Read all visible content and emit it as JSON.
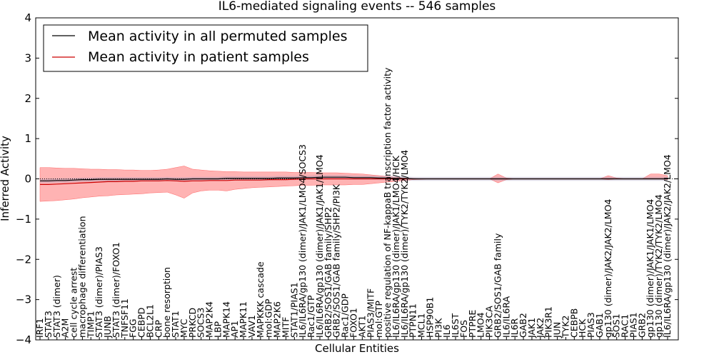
{
  "chart_data": {
    "type": "line",
    "title": "IL6-mediated signaling events -- 546 samples",
    "xlabel": "Cellular Entities",
    "ylabel": "Inferred Activity",
    "ylim": [
      -4,
      4
    ],
    "yticks": [
      -4,
      -3,
      -2,
      -1,
      0,
      1,
      2,
      3,
      4
    ],
    "legend_position": "top-left",
    "colors": {
      "permuted": "#000000",
      "patient": "#cc0000",
      "patient_band": "#ff9999",
      "permuted_band": "#9999bb"
    },
    "categories": [
      "IRF1",
      "STAT3",
      "STAT3 (dimer)",
      "A2M",
      "cell cycle arrest",
      "macrophage differentiation",
      "TIMP1",
      "STAT3 (dimer)/PIAS3",
      "JUNB",
      "STAT3 (dimer)/FOXO1",
      "TNFSF11",
      "FGG",
      "CEBPD",
      "BCL2L1",
      "CRP",
      "bone resorption",
      "STAT1",
      "MYC",
      "PRKCD",
      "SOCS3",
      "MAP2K4",
      "LBP",
      "MAPK14",
      "AP1",
      "MAPK11",
      "VAV1",
      "MAPKKK cascade",
      "mol:GDP",
      "MAP2K6",
      "MITF",
      "STAT1/PIAS1",
      "IL6/IL6RA/gp130 (dimer)/JAK1/LMO4/SOCS3",
      "Rac1/GTP",
      "IL6/IL6RA/gp130 (dimer)/JAK1/JAK1/LMO4",
      "GRB2/SOS1/GAB family/SHP2",
      "GRB2/SOS1/GAB family/SHP2/PI3K",
      "Rac1/GDP",
      "FOXO1",
      "AKT1",
      "PIAS3/MITF",
      "mol:GTP",
      "positive regulation of NF-kappaB transcription factor activity",
      "IL6/IL6RA/gp130 (dimer)/JAK1/LMO4/HCK",
      "IL6/IL6RA/gp130 (dimer)/TYK2/TYK2/LMO4",
      "PTPN11",
      "MCL1",
      "HSP90B1",
      "PI3K",
      "IL6",
      "IL6ST",
      "FOS",
      "PTPRE",
      "LMO4",
      "PIK3CA",
      "GRB2/SOS1/GAB family",
      "IL6/IL6RA",
      "IL6R",
      "GAB2",
      "JAK1",
      "JAK2",
      "PIK3R1",
      "JUN",
      "TYK2",
      "CEBPB",
      "HCK",
      "PIAS3",
      "GAB1",
      "gp130 (dimer)/JAK2/JAK2/LMO4",
      "SOS1",
      "RAC1",
      "PIAS1",
      "GRB2",
      "gp130 (dimer)/JAK1/JAK1/LMO4",
      "gp130 (dimer)/TYK2/TYK2/LMO4",
      "IL6/IL6RA/gp130 (dimer)/JAK2/JAK2/LMO4"
    ],
    "series": [
      {
        "name": "Mean activity in all permuted samples",
        "values": [
          -0.05,
          -0.05,
          -0.04,
          -0.04,
          -0.03,
          -0.02,
          -0.02,
          -0.01,
          -0.01,
          -0.01,
          -0.01,
          -0.01,
          -0.01,
          -0.01,
          -0.01,
          0.0,
          -0.01,
          -0.01,
          0.0,
          0.0,
          0.0,
          0.0,
          0.01,
          0.01,
          0.01,
          0.01,
          0.01,
          0.01,
          0.02,
          0.02,
          0.02,
          0.03,
          0.03,
          0.04,
          0.04,
          0.04,
          0.04,
          0.03,
          0.03,
          0.03,
          0.02,
          0.02,
          0.01,
          0.01,
          0.0,
          0.0,
          0.0,
          0.0,
          0.0,
          0.0,
          0.0,
          0.0,
          0.0,
          0.0,
          0.0,
          0.0,
          0.0,
          0.0,
          0.0,
          0.0,
          0.0,
          0.0,
          0.0,
          0.0,
          0.0,
          0.0,
          0.0,
          0.0,
          0.0,
          0.0,
          0.0,
          0.0,
          0.0,
          0.0,
          0.0
        ]
      },
      {
        "name": "Mean activity in patient samples",
        "values": [
          -0.14,
          -0.14,
          -0.13,
          -0.12,
          -0.11,
          -0.1,
          -0.09,
          -0.08,
          -0.07,
          -0.07,
          -0.06,
          -0.06,
          -0.05,
          -0.05,
          -0.05,
          -0.04,
          -0.05,
          -0.06,
          -0.05,
          -0.05,
          -0.04,
          -0.04,
          -0.04,
          -0.03,
          -0.03,
          -0.03,
          -0.03,
          -0.02,
          -0.02,
          -0.02,
          -0.01,
          0.0,
          0.0,
          0.0,
          0.0,
          0.0,
          0.0,
          0.0,
          0.0,
          0.0,
          0.0,
          0.0,
          0.0,
          0.0,
          0.0,
          0.0,
          0.0,
          0.0,
          0.0,
          0.0,
          0.0,
          0.0,
          0.0,
          0.0,
          0.0,
          0.0,
          0.0,
          0.0,
          0.0,
          0.0,
          0.0,
          0.0,
          0.0,
          0.0,
          0.0,
          0.0,
          0.0,
          0.0,
          0.0,
          0.0,
          0.0,
          0.0,
          0.0,
          0.0,
          0.0
        ],
        "band_upper": [
          0.28,
          0.28,
          0.27,
          0.26,
          0.26,
          0.25,
          0.24,
          0.24,
          0.23,
          0.23,
          0.22,
          0.22,
          0.21,
          0.21,
          0.22,
          0.24,
          0.28,
          0.32,
          0.24,
          0.22,
          0.2,
          0.19,
          0.18,
          0.18,
          0.17,
          0.17,
          0.17,
          0.17,
          0.17,
          0.17,
          0.16,
          0.16,
          0.16,
          0.15,
          0.15,
          0.15,
          0.14,
          0.13,
          0.12,
          0.1,
          0.08,
          0.06,
          0.04,
          0.02,
          0.01,
          0.0,
          0.0,
          0.0,
          0.0,
          0.0,
          0.0,
          0.0,
          0.0,
          0.0,
          0.12,
          0.02,
          0.0,
          0.0,
          0.0,
          0.0,
          0.0,
          0.0,
          0.0,
          0.0,
          0.0,
          0.0,
          0.0,
          0.08,
          0.02,
          0.0,
          0.0,
          0.0,
          0.12,
          0.12,
          0.08
        ],
        "band_lower": [
          -0.56,
          -0.55,
          -0.54,
          -0.52,
          -0.5,
          -0.47,
          -0.45,
          -0.43,
          -0.42,
          -0.4,
          -0.39,
          -0.38,
          -0.37,
          -0.35,
          -0.34,
          -0.33,
          -0.4,
          -0.48,
          -0.35,
          -0.3,
          -0.28,
          -0.28,
          -0.3,
          -0.26,
          -0.24,
          -0.22,
          -0.21,
          -0.2,
          -0.19,
          -0.18,
          -0.17,
          -0.16,
          -0.16,
          -0.15,
          -0.15,
          -0.15,
          -0.15,
          -0.14,
          -0.14,
          -0.12,
          -0.1,
          -0.08,
          -0.06,
          -0.04,
          -0.02,
          -0.01,
          0.0,
          0.0,
          0.0,
          0.0,
          0.0,
          0.0,
          0.0,
          0.0,
          -0.1,
          -0.02,
          0.0,
          0.0,
          0.0,
          0.0,
          0.0,
          0.0,
          0.0,
          0.0,
          0.0,
          0.0,
          0.0,
          -0.02,
          0.0,
          0.0,
          0.0,
          0.0,
          0.0,
          0.0,
          -0.02
        ]
      }
    ]
  }
}
